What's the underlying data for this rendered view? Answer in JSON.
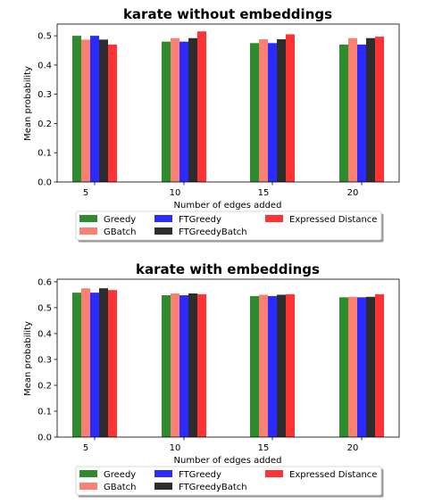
{
  "chart_data": [
    {
      "type": "bar",
      "title": "karate without embeddings",
      "xlabel": "Number of edges added",
      "ylabel": "Mean probability",
      "categories": [
        "5",
        "10",
        "15",
        "20"
      ],
      "ylim": [
        0,
        0.54
      ],
      "yticks": [
        "0.0",
        "0.1",
        "0.2",
        "0.3",
        "0.4",
        "0.5"
      ],
      "legend_position": "below",
      "series": [
        {
          "name": "Greedy",
          "color": "#2e8b2e",
          "values": [
            0.5,
            0.48,
            0.475,
            0.47
          ]
        },
        {
          "name": "GBatch",
          "color": "#fa8072",
          "values": [
            0.487,
            0.492,
            0.488,
            0.492
          ]
        },
        {
          "name": "FTGreedy",
          "color": "#2b2bff",
          "values": [
            0.5,
            0.48,
            0.475,
            0.47
          ]
        },
        {
          "name": "FTGreedyBatch",
          "color": "#2d2d2d",
          "values": [
            0.487,
            0.492,
            0.488,
            0.492
          ]
        },
        {
          "name": "Expressed Distance",
          "color": "#ff3333",
          "values": [
            0.47,
            0.515,
            0.505,
            0.497
          ]
        }
      ]
    },
    {
      "type": "bar",
      "title": "karate with embeddings",
      "xlabel": "Number of edges added",
      "ylabel": "Mean probability",
      "categories": [
        "5",
        "10",
        "15",
        "20"
      ],
      "ylim": [
        0,
        0.61
      ],
      "yticks": [
        "0.0",
        "0.1",
        "0.2",
        "0.3",
        "0.4",
        "0.5",
        "0.6"
      ],
      "legend_position": "below",
      "series": [
        {
          "name": "Greedy",
          "color": "#2e8b2e",
          "values": [
            0.558,
            0.548,
            0.545,
            0.54
          ]
        },
        {
          "name": "GBatch",
          "color": "#fa8072",
          "values": [
            0.575,
            0.555,
            0.55,
            0.542
          ]
        },
        {
          "name": "FTGreedy",
          "color": "#2b2bff",
          "values": [
            0.558,
            0.548,
            0.545,
            0.54
          ]
        },
        {
          "name": "FTGreedyBatch",
          "color": "#2d2d2d",
          "values": [
            0.575,
            0.555,
            0.55,
            0.542
          ]
        },
        {
          "name": "Expressed Distance",
          "color": "#ff3333",
          "values": [
            0.568,
            0.552,
            0.552,
            0.552
          ]
        }
      ]
    }
  ]
}
